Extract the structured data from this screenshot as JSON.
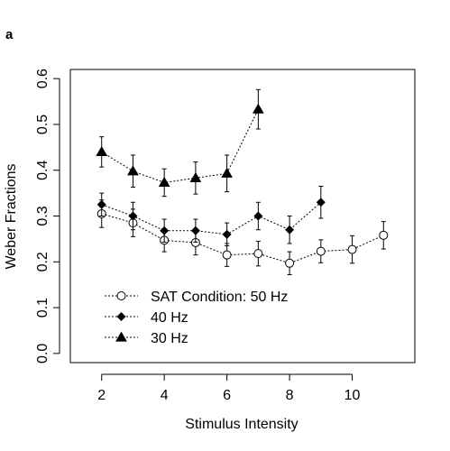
{
  "panel_label": "a",
  "chart_data": {
    "type": "line",
    "title": "",
    "xlabel": "Stimulus Intensity",
    "ylabel": "Weber Fractions",
    "xlim": [
      1,
      12
    ],
    "ylim": [
      -0.02,
      0.62
    ],
    "xticks": [
      2,
      4,
      6,
      8,
      10
    ],
    "yticks": [
      0.0,
      0.1,
      0.2,
      0.3,
      0.4,
      0.5,
      0.6
    ],
    "grid": false,
    "legend_position": "bottom-left",
    "series": [
      {
        "name": "SAT Condition: 50 Hz",
        "marker": "open-circle",
        "line_style": "dotted",
        "x": [
          2,
          3,
          4,
          5,
          6,
          7,
          8,
          9,
          10,
          11
        ],
        "y": [
          0.305,
          0.285,
          0.247,
          0.242,
          0.215,
          0.218,
          0.197,
          0.223,
          0.227,
          0.258
        ],
        "err": [
          0.03,
          0.03,
          0.025,
          0.027,
          0.025,
          0.027,
          0.025,
          0.025,
          0.03,
          0.03
        ]
      },
      {
        "name": "40 Hz",
        "marker": "filled-diamond",
        "line_style": "dotted",
        "x": [
          2,
          3,
          4,
          5,
          6,
          7,
          8,
          9
        ],
        "y": [
          0.325,
          0.3,
          0.268,
          0.268,
          0.26,
          0.3,
          0.27,
          0.33
        ],
        "err": [
          0.025,
          0.03,
          0.025,
          0.025,
          0.025,
          0.03,
          0.03,
          0.035
        ]
      },
      {
        "name": "30 Hz",
        "marker": "filled-triangle",
        "line_style": "dotted",
        "x": [
          2,
          3,
          4,
          5,
          6,
          7
        ],
        "y": [
          0.44,
          0.398,
          0.373,
          0.383,
          0.393,
          0.533
        ],
        "err": [
          0.033,
          0.035,
          0.03,
          0.035,
          0.04,
          0.043
        ]
      }
    ]
  }
}
